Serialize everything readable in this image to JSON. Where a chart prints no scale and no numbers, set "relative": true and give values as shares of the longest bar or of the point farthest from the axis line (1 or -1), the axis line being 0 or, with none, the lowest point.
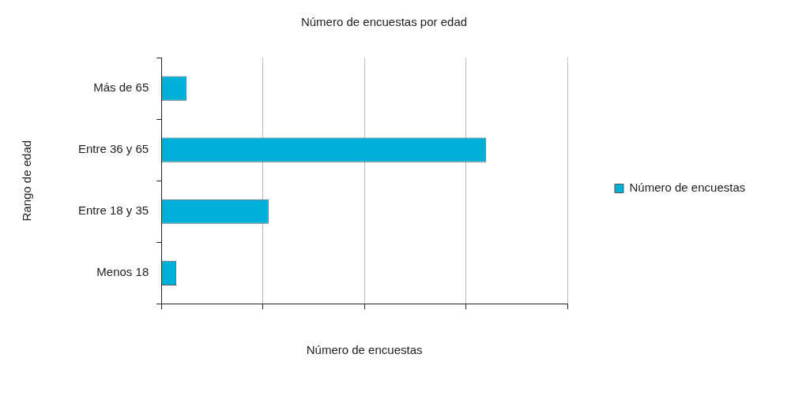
{
  "chart_data": {
    "type": "bar",
    "orientation": "horizontal",
    "relative": true,
    "title": "Número de encuestas por edad",
    "xlabel": "Número de encuestas",
    "ylabel": "Rango de edad",
    "categories": [
      "Más de 65",
      "Entre 36 y 65",
      "Entre 18 y 35",
      "Menos 18"
    ],
    "series": [
      {
        "name": "Número de encuestas",
        "color": "#00b0d8",
        "values": [
          0.078,
          1,
          0.33,
          0.046
        ]
      }
    ],
    "grid": "x",
    "legend": "right"
  }
}
